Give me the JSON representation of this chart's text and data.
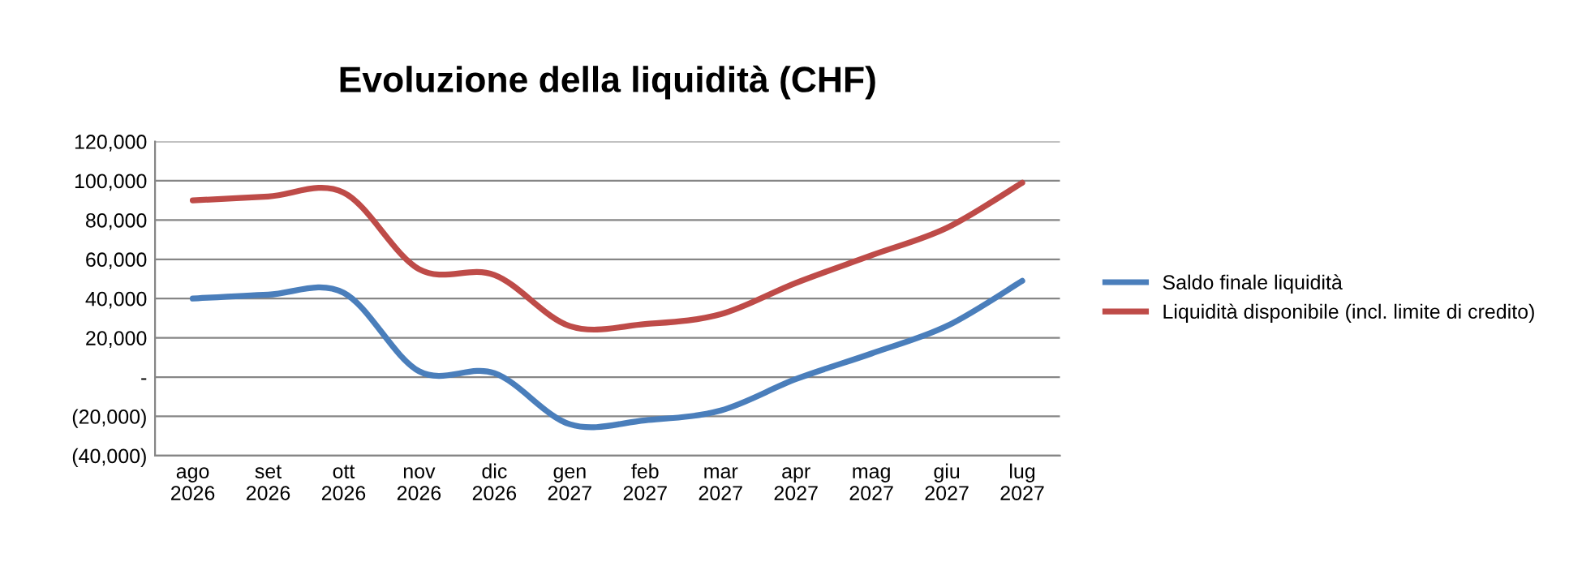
{
  "chart_data": {
    "type": "line",
    "title": "Evoluzione della liquidità (CHF)",
    "categories": [
      "ago\n2026",
      "set\n2026",
      "ott\n2026",
      "nov\n2026",
      "dic\n2026",
      "gen\n2027",
      "feb\n2027",
      "mar\n2027",
      "apr\n2027",
      "mag\n2027",
      "giu\n2027",
      "lug\n2027"
    ],
    "series": [
      {
        "name": "Saldo finale liquidità",
        "color": "#4a7ebb",
        "values": [
          40000,
          42000,
          43000,
          3000,
          2000,
          -24000,
          -22000,
          -17000,
          -1000,
          12000,
          26000,
          49000
        ]
      },
      {
        "name": "Liquidità disponibile (incl. limite di credito)",
        "color": "#be4b48",
        "values": [
          90000,
          92000,
          94000,
          55000,
          52000,
          26000,
          27000,
          32000,
          48000,
          62000,
          76000,
          99000
        ]
      }
    ],
    "ylim": [
      -40000,
      120000
    ],
    "yticks": [
      {
        "value": -40000,
        "label": "(40,000)"
      },
      {
        "value": -20000,
        "label": "(20,000)"
      },
      {
        "value": 0,
        "label": "-"
      },
      {
        "value": 20000,
        "label": "20,000"
      },
      {
        "value": 40000,
        "label": "40,000"
      },
      {
        "value": 60000,
        "label": "60,000"
      },
      {
        "value": 80000,
        "label": "80,000"
      },
      {
        "value": 100000,
        "label": "100,000"
      },
      {
        "value": 120000,
        "label": "120,000"
      }
    ],
    "grid": "y",
    "legend": "right",
    "marker": "none",
    "line_style": "solid"
  }
}
